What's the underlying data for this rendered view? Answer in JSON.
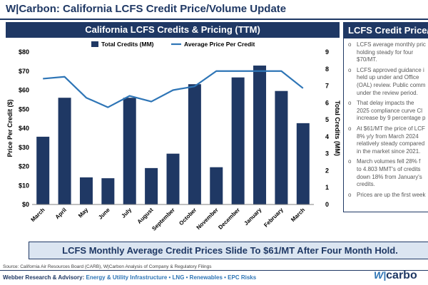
{
  "title": "W|Carbon: California LCFS Credit Price/Volume Update",
  "chart_header": "California LCFS Credits & Pricing (TTM)",
  "side_panel": {
    "header": "LCFS Credit Price/V",
    "bullets": [
      [
        "LCFS average monthly pric",
        "holding steady for four",
        "$70/MT."
      ],
      [
        "LCFS approved guidance i",
        "held up under and Office",
        "(OAL) review. Public comm",
        "under the review period."
      ],
      [
        "That delay impacts the",
        "2025 compliance curve Cl",
        "increase by 9 percentage p"
      ],
      [
        "At $61/MT the price of LCF",
        "8% y/y from March 2024",
        "relatively steady compared",
        "in the market since 2021."
      ],
      [
        "March volumes fell 28% f",
        "to 4.803 MMT's of credits",
        "down 18% from January's",
        "credits."
      ],
      [
        "Prices are up the first week"
      ]
    ]
  },
  "callout": "LCFS Monthly Average Credit Prices Slide To $61/MT After Four Month Hold.",
  "source": "Source: California Air Resources Board (CARB), W|Carbon Analysis of Company & Regulatory Filings",
  "footer": {
    "lead": "Webber Research & Advisory:",
    "tags": "Energy & Utility Infrastructure • LNG • Renewables • EPC Risks"
  },
  "logo": {
    "mark": "W|",
    "text": "carbo"
  },
  "colors": {
    "navy": "#1f3864",
    "line": "#2e75b6",
    "callout_bg": "#dbe5f1"
  },
  "chart_data": {
    "type": "bar+line",
    "categories": [
      "March",
      "April",
      "May",
      "June",
      "July",
      "August",
      "September",
      "October",
      "November",
      "December",
      "January",
      "February",
      "March"
    ],
    "series": [
      {
        "name": "Total Credits (MM)",
        "type": "bar",
        "axis": "right",
        "values": [
          4.0,
          6.3,
          1.6,
          1.55,
          6.3,
          2.15,
          3.0,
          7.1,
          2.2,
          7.5,
          8.2,
          6.7,
          4.8
        ]
      },
      {
        "name": "Average Price Per Credit",
        "type": "line",
        "axis": "left",
        "values": [
          66,
          67,
          56,
          51,
          57,
          54,
          60,
          62,
          70,
          70,
          70,
          70,
          61
        ]
      }
    ],
    "ylabel": "Price Per Credit ($)",
    "y2label": "Total Credits (MM)",
    "ylim": [
      0,
      80
    ],
    "y2lim": [
      0,
      9
    ],
    "yticks": [
      "$0",
      "$10",
      "$20",
      "$30",
      "$40",
      "$50",
      "$60",
      "$70",
      "$80"
    ],
    "y2ticks": [
      "0",
      "1",
      "2",
      "3",
      "4",
      "5",
      "6",
      "7",
      "8",
      "9"
    ],
    "legend_position": "top-center",
    "grid": false
  }
}
